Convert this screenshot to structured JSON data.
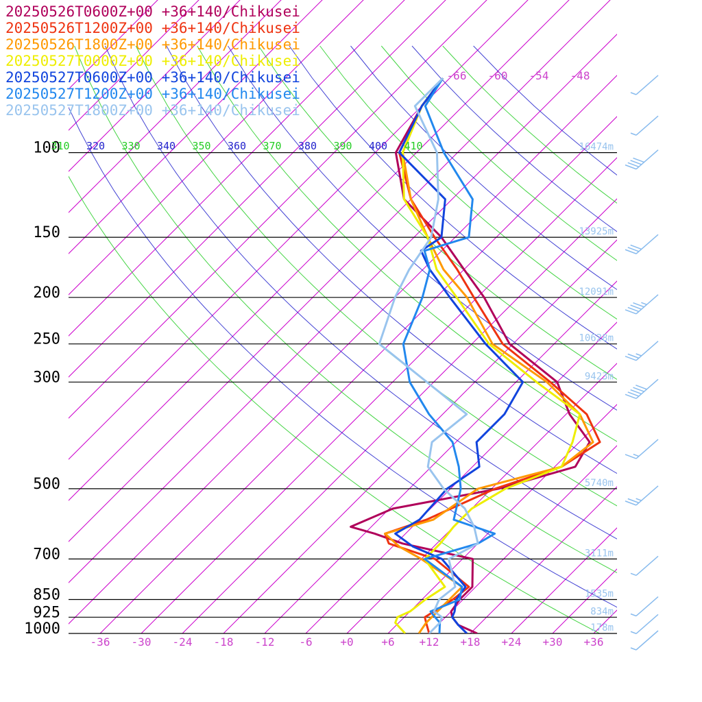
{
  "chart_data": {
    "type": "line",
    "subtype": "skew-t log-p sounding (temperature vs pressure)",
    "xlabel": "",
    "ylabel": "",
    "xlim": [
      -40,
      40
    ],
    "ylim_pressure_hpa": [
      1000,
      100
    ],
    "grid": true,
    "legend_position": "top-left",
    "pressure_levels": [
      {
        "p": 100,
        "label": "100",
        "height": "16474m"
      },
      {
        "p": 150,
        "label": "150",
        "height": "13925m"
      },
      {
        "p": 200,
        "label": "200",
        "height": "12091m"
      },
      {
        "p": 250,
        "label": "250",
        "height": "10628m"
      },
      {
        "p": 300,
        "label": "300",
        "height": "9423m"
      },
      {
        "p": 500,
        "label": "500",
        "height": "5740m"
      },
      {
        "p": 700,
        "label": "700",
        "height": "3111m"
      },
      {
        "p": 850,
        "label": "850",
        "height": "1535m"
      },
      {
        "p": 925,
        "label": "925",
        "height": "834m"
      },
      {
        "p": 1000,
        "label": "1000",
        "height": "178m"
      }
    ],
    "temperature_ticks": [
      {
        "t": -36,
        "label": "-36"
      },
      {
        "t": -30,
        "label": "-30"
      },
      {
        "t": -24,
        "label": "-24"
      },
      {
        "t": -18,
        "label": "-18"
      },
      {
        "t": -12,
        "label": "-12"
      },
      {
        "t": -6,
        "label": "-6"
      },
      {
        "t": 0,
        "label": "+0"
      },
      {
        "t": 6,
        "label": "+6"
      },
      {
        "t": 12,
        "label": "+12"
      },
      {
        "t": 18,
        "label": "+18"
      },
      {
        "t": 24,
        "label": "+24"
      },
      {
        "t": 30,
        "label": "+30"
      },
      {
        "t": 36,
        "label": "+36"
      }
    ],
    "upper_temperature_ticks": [
      {
        "t": -66,
        "label": "-66"
      },
      {
        "t": -60,
        "label": "-60"
      },
      {
        "t": -54,
        "label": "-54"
      },
      {
        "t": -48,
        "label": "-48"
      }
    ],
    "isotherms_c": [
      -120,
      -114,
      -108,
      -102,
      -96,
      -90,
      -84,
      -78,
      -72,
      -66,
      -60,
      -54,
      -48,
      -42,
      -36,
      -30,
      -24,
      -18,
      -12,
      -6,
      0,
      6,
      12,
      18,
      24,
      30,
      36
    ],
    "theta_e_lines": [
      {
        "theta": 310,
        "label": "310",
        "color": "#22cc22"
      },
      {
        "theta": 320,
        "label": "320",
        "color": "#2222cc"
      },
      {
        "theta": 330,
        "label": "330",
        "color": "#22cc22"
      },
      {
        "theta": 340,
        "label": "340",
        "color": "#2222cc"
      },
      {
        "theta": 350,
        "label": "350",
        "color": "#22cc22"
      },
      {
        "theta": 360,
        "label": "360",
        "color": "#2222cc"
      },
      {
        "theta": 370,
        "label": "370",
        "color": "#22cc22"
      },
      {
        "theta": 380,
        "label": "380",
        "color": "#2222cc"
      },
      {
        "theta": 390,
        "label": "390",
        "color": "#22cc22"
      },
      {
        "theta": 400,
        "label": "400",
        "color": "#2222cc"
      },
      {
        "theta": 410,
        "label": "410",
        "color": "#22cc22"
      },
      {
        "theta": 420,
        "label": "",
        "color": "#2222cc"
      },
      {
        "theta": 430,
        "label": "",
        "color": "#22cc22"
      },
      {
        "theta": 440,
        "label": "",
        "color": "#2222cc"
      },
      {
        "theta": 450,
        "label": "",
        "color": "#22cc22"
      },
      {
        "theta": 460,
        "label": "",
        "color": "#2222cc"
      }
    ],
    "series": [
      {
        "name": "20250526T0600Z+00 +36+140/Chikusei",
        "color": "#b0005a",
        "points": [
          {
            "p": 1000,
            "t": 19.0
          },
          {
            "p": 960,
            "t": 15.0
          },
          {
            "p": 925,
            "t": 13.0
          },
          {
            "p": 900,
            "t": 12.0
          },
          {
            "p": 850,
            "t": 11.5
          },
          {
            "p": 800,
            "t": 11.5
          },
          {
            "p": 700,
            "t": 7.5
          },
          {
            "p": 650,
            "t": -5.0
          },
          {
            "p": 620,
            "t": -10.5
          },
          {
            "p": 600,
            "t": -15.0
          },
          {
            "p": 550,
            "t": -11.5
          },
          {
            "p": 500,
            "t": 1.0
          },
          {
            "p": 450,
            "t": 9.0
          },
          {
            "p": 400,
            "t": 7.5
          },
          {
            "p": 350,
            "t": 0.5
          },
          {
            "p": 300,
            "t": -6.0
          },
          {
            "p": 250,
            "t": -18.5
          },
          {
            "p": 200,
            "t": -29.0
          },
          {
            "p": 175,
            "t": -36.0
          },
          {
            "p": 150,
            "t": -44.0
          },
          {
            "p": 125,
            "t": -55.0
          },
          {
            "p": 100,
            "t": -63.0
          },
          {
            "p": 80,
            "t": -66.0
          },
          {
            "p": 70,
            "t": -67.0
          }
        ]
      },
      {
        "name": "20250526T1200Z+00 +36+140/Chikusei",
        "color": "#ee3311",
        "points": [
          {
            "p": 1000,
            "t": 12.0
          },
          {
            "p": 950,
            "t": 10.0
          },
          {
            "p": 925,
            "t": 9.0
          },
          {
            "p": 900,
            "t": 9.5
          },
          {
            "p": 850,
            "t": 10.5
          },
          {
            "p": 800,
            "t": 11.0
          },
          {
            "p": 700,
            "t": 2.0
          },
          {
            "p": 650,
            "t": -7.0
          },
          {
            "p": 620,
            "t": -9.0
          },
          {
            "p": 580,
            "t": -5.0
          },
          {
            "p": 500,
            "t": 0.5
          },
          {
            "p": 450,
            "t": 7.0
          },
          {
            "p": 400,
            "t": 9.0
          },
          {
            "p": 350,
            "t": 3.0
          },
          {
            "p": 300,
            "t": -7.0
          },
          {
            "p": 250,
            "t": -19.5
          },
          {
            "p": 200,
            "t": -30.5
          },
          {
            "p": 175,
            "t": -37.0
          },
          {
            "p": 150,
            "t": -45.0
          },
          {
            "p": 125,
            "t": -54.0
          },
          {
            "p": 100,
            "t": -62.5
          },
          {
            "p": 80,
            "t": -66.0
          },
          {
            "p": 70,
            "t": -67.0
          }
        ]
      },
      {
        "name": "20250526T1800Z+00 +36+140/Chikusei",
        "color": "#ff9900",
        "points": [
          {
            "p": 1000,
            "t": 10.5
          },
          {
            "p": 950,
            "t": 10.0
          },
          {
            "p": 925,
            "t": 10.0
          },
          {
            "p": 900,
            "t": 10.0
          },
          {
            "p": 850,
            "t": 10.0
          },
          {
            "p": 800,
            "t": 10.0
          },
          {
            "p": 700,
            "t": 0.0
          },
          {
            "p": 660,
            "t": -5.0
          },
          {
            "p": 620,
            "t": -9.0
          },
          {
            "p": 580,
            "t": -4.0
          },
          {
            "p": 500,
            "t": -2.0
          },
          {
            "p": 450,
            "t": 7.0
          },
          {
            "p": 400,
            "t": 8.0
          },
          {
            "p": 350,
            "t": 2.0
          },
          {
            "p": 300,
            "t": -7.5
          },
          {
            "p": 250,
            "t": -21.0
          },
          {
            "p": 200,
            "t": -31.5
          },
          {
            "p": 175,
            "t": -39.0
          },
          {
            "p": 150,
            "t": -46.0
          },
          {
            "p": 125,
            "t": -54.0
          },
          {
            "p": 100,
            "t": -62.0
          },
          {
            "p": 80,
            "t": -66.0
          },
          {
            "p": 70,
            "t": -67.0
          }
        ]
      },
      {
        "name": "20250527T0000Z+00 +36+140/Chikusei",
        "color": "#eeee00",
        "points": [
          {
            "p": 1000,
            "t": 8.5
          },
          {
            "p": 950,
            "t": 5.5
          },
          {
            "p": 925,
            "t": 5.0
          },
          {
            "p": 900,
            "t": 6.0
          },
          {
            "p": 850,
            "t": 6.5
          },
          {
            "p": 800,
            "t": 7.5
          },
          {
            "p": 700,
            "t": 0.5
          },
          {
            "p": 650,
            "t": 0.5
          },
          {
            "p": 600,
            "t": 0.0
          },
          {
            "p": 550,
            "t": 0.0
          },
          {
            "p": 500,
            "t": 2.0
          },
          {
            "p": 450,
            "t": 7.0
          },
          {
            "p": 400,
            "t": 5.0
          },
          {
            "p": 350,
            "t": 2.0
          },
          {
            "p": 300,
            "t": -9.0
          },
          {
            "p": 250,
            "t": -21.5
          },
          {
            "p": 200,
            "t": -33.0
          },
          {
            "p": 175,
            "t": -40.0
          },
          {
            "p": 150,
            "t": -46.0
          },
          {
            "p": 125,
            "t": -55.0
          },
          {
            "p": 100,
            "t": -62.0
          },
          {
            "p": 80,
            "t": -66.0
          },
          {
            "p": 70,
            "t": -67.0
          }
        ]
      },
      {
        "name": "20250527T0600Z+00 +36+140/Chikusei",
        "color": "#1144dd",
        "points": [
          {
            "p": 1000,
            "t": 17.5
          },
          {
            "p": 960,
            "t": 15.0
          },
          {
            "p": 925,
            "t": 13.0
          },
          {
            "p": 900,
            "t": 12.5
          },
          {
            "p": 850,
            "t": 11.0
          },
          {
            "p": 800,
            "t": 10.5
          },
          {
            "p": 700,
            "t": 3.0
          },
          {
            "p": 660,
            "t": -3.0
          },
          {
            "p": 620,
            "t": -7.5
          },
          {
            "p": 580,
            "t": -6.0
          },
          {
            "p": 500,
            "t": -6.5
          },
          {
            "p": 450,
            "t": -5.0
          },
          {
            "p": 400,
            "t": -9.0
          },
          {
            "p": 350,
            "t": -9.0
          },
          {
            "p": 300,
            "t": -11.0
          },
          {
            "p": 250,
            "t": -22.0
          },
          {
            "p": 200,
            "t": -34.0
          },
          {
            "p": 175,
            "t": -41.0
          },
          {
            "p": 160,
            "t": -45.0
          },
          {
            "p": 150,
            "t": -44.0
          },
          {
            "p": 125,
            "t": -49.0
          },
          {
            "p": 100,
            "t": -62.5
          },
          {
            "p": 80,
            "t": -66.0
          },
          {
            "p": 70,
            "t": -67.0
          }
        ]
      },
      {
        "name": "20250527T1200Z+00 +36+140/Chikusei",
        "color": "#2288ee",
        "points": [
          {
            "p": 1000,
            "t": 13.5
          },
          {
            "p": 950,
            "t": 12.0
          },
          {
            "p": 925,
            "t": 10.5
          },
          {
            "p": 900,
            "t": 9.0
          },
          {
            "p": 850,
            "t": 11.5
          },
          {
            "p": 800,
            "t": 10.0
          },
          {
            "p": 700,
            "t": 0.5
          },
          {
            "p": 650,
            "t": 6.0
          },
          {
            "p": 620,
            "t": 7.0
          },
          {
            "p": 580,
            "t": -1.0
          },
          {
            "p": 500,
            "t": -4.5
          },
          {
            "p": 450,
            "t": -8.0
          },
          {
            "p": 400,
            "t": -12.5
          },
          {
            "p": 350,
            "t": -20.0
          },
          {
            "p": 300,
            "t": -27.5
          },
          {
            "p": 250,
            "t": -34.0
          },
          {
            "p": 200,
            "t": -38.0
          },
          {
            "p": 175,
            "t": -41.0
          },
          {
            "p": 160,
            "t": -44.5
          },
          {
            "p": 150,
            "t": -40.0
          },
          {
            "p": 125,
            "t": -45.0
          },
          {
            "p": 100,
            "t": -56.0
          },
          {
            "p": 80,
            "t": -65.5
          },
          {
            "p": 70,
            "t": -67.0
          }
        ]
      },
      {
        "name": "20250527T1800Z+00 +36+140/Chikusei",
        "color": "#99c4ee",
        "points": [
          {
            "p": 1000,
            "t": 12.0
          },
          {
            "p": 950,
            "t": 12.0
          },
          {
            "p": 925,
            "t": 11.5
          },
          {
            "p": 900,
            "t": 9.5
          },
          {
            "p": 850,
            "t": 8.5
          },
          {
            "p": 800,
            "t": 9.0
          },
          {
            "p": 700,
            "t": 4.0
          },
          {
            "p": 650,
            "t": 6.0
          },
          {
            "p": 600,
            "t": 3.0
          },
          {
            "p": 550,
            "t": -1.0
          },
          {
            "p": 500,
            "t": -7.0
          },
          {
            "p": 450,
            "t": -12.5
          },
          {
            "p": 400,
            "t": -15.5
          },
          {
            "p": 350,
            "t": -14.5
          },
          {
            "p": 300,
            "t": -25.0
          },
          {
            "p": 250,
            "t": -37.5
          },
          {
            "p": 200,
            "t": -42.0
          },
          {
            "p": 175,
            "t": -44.0
          },
          {
            "p": 150,
            "t": -45.5
          },
          {
            "p": 125,
            "t": -50.0
          },
          {
            "p": 100,
            "t": -57.0
          },
          {
            "p": 80,
            "t": -67.0
          },
          {
            "p": 70,
            "t": -67.0
          }
        ]
      }
    ],
    "wind_barbs": {
      "color": "#88bbee",
      "note": "wind barbs shown along right margin",
      "levels": [
        {
          "p": 70,
          "speed_kt": 5
        },
        {
          "p": 85,
          "speed_kt": 5
        },
        {
          "p": 100,
          "speed_kt": 40
        },
        {
          "p": 150,
          "speed_kt": 30
        },
        {
          "p": 200,
          "speed_kt": 45
        },
        {
          "p": 250,
          "speed_kt": 25
        },
        {
          "p": 300,
          "speed_kt": 50
        },
        {
          "p": 400,
          "speed_kt": 15
        },
        {
          "p": 500,
          "speed_kt": 25
        },
        {
          "p": 700,
          "speed_kt": 5
        },
        {
          "p": 850,
          "speed_kt": 5
        },
        {
          "p": 925,
          "speed_kt": 5
        },
        {
          "p": 1000,
          "speed_kt": 5
        }
      ]
    },
    "colors": {
      "isotherm": "#cc00cc",
      "pressure_line": "#000000",
      "height_label": "#99c4ee",
      "temp_tick_label": "#cc44cc",
      "pressure_label": "#000000"
    }
  }
}
